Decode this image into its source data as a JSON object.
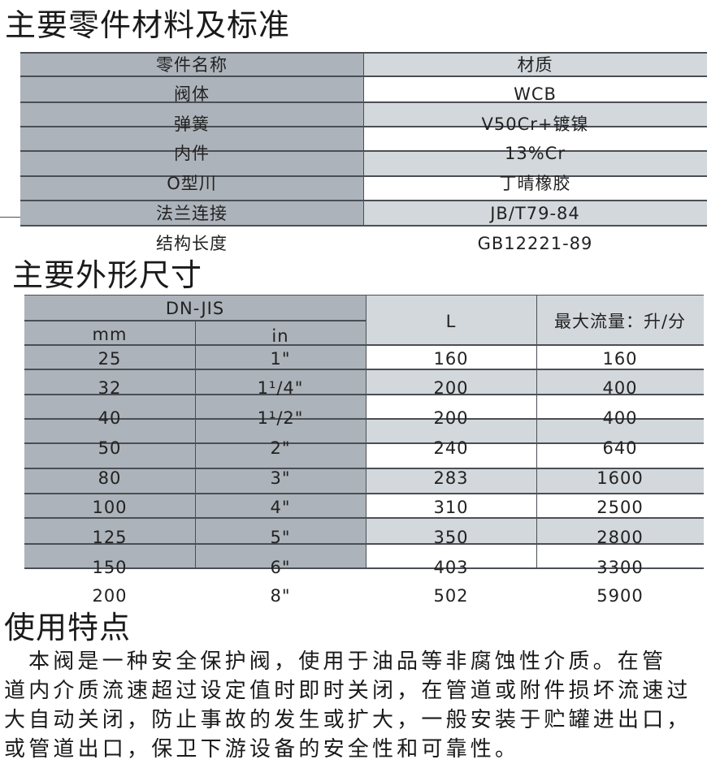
{
  "materials": {
    "title": "主要零件材料及标准",
    "headers": [
      "零件名称",
      "材质"
    ],
    "rows": [
      {
        "part": "阀体",
        "material": "WCB"
      },
      {
        "part": "弹簧",
        "material": "V50Cr+镀镍"
      },
      {
        "part": "内件",
        "material": "13%Cr"
      },
      {
        "part": "O型川",
        "material": "丁晴橡胶"
      },
      {
        "part": "法兰连接",
        "material": "JB/T79-84"
      },
      {
        "part": "结构长度",
        "material": "GB12221-89"
      }
    ]
  },
  "dimensions": {
    "title": "主要外形尺寸",
    "header_group": "DN-JIS",
    "headers": [
      "mm",
      "in",
      "L",
      "最大流量：升/分"
    ],
    "rows": [
      [
        "25",
        "1\"",
        "160",
        "160"
      ],
      [
        "32",
        "1¹/4\"",
        "200",
        "400"
      ],
      [
        "40",
        "1¹/2\"",
        "200",
        "400"
      ],
      [
        "50",
        "2\"",
        "240",
        "640"
      ],
      [
        "80",
        "3\"",
        "283",
        "1600"
      ],
      [
        "100",
        "4\"",
        "310",
        "2500"
      ],
      [
        "125",
        "5\"",
        "350",
        "2800"
      ],
      [
        "150",
        "6\"",
        "403",
        "3300"
      ],
      [
        "200",
        "8\"",
        "502",
        "5900"
      ]
    ]
  },
  "features": {
    "title": "使用特点",
    "lines": [
      "本阀是一种安全保护阀，使用于油品等非腐蚀性介质。在管",
      "道内介质流速超过设定值时即时关闭，在管道或附件损坏流速过",
      "大自动关闭，防止事故的发生或扩大，一般安装于贮罐进出口，",
      "或管道出口，保卫下游设备的安全性和可靠性。"
    ]
  },
  "colors": {
    "dark_cell": "#adb3ba",
    "light_cell": "#d3d8dc",
    "grid": "#4a4f55"
  }
}
